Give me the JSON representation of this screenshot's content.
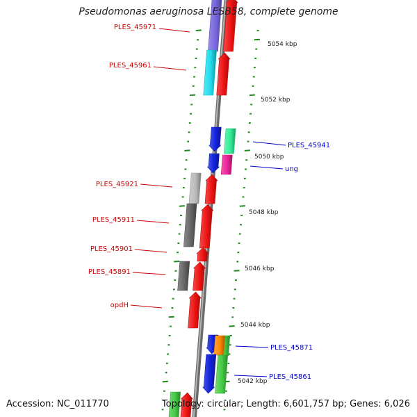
{
  "title": "Pseudomonas aeruginosa LESB58, complete genome",
  "accession_text": "Accession: NC_011770",
  "topology_text": "Topology: circular; Length: 6,601,757 bp; Genes: 6,026",
  "colors": {
    "backbone": "#8c8c8c",
    "tick": "#1b8a1b",
    "left_label": "#cc0000",
    "right_label": "#0000cc",
    "red": "#ee1111",
    "blue": "#1122dd",
    "purple": "#7766dd",
    "cyan": "#22ddee",
    "green": "#44cc44",
    "mint": "#33ee99",
    "magenta": "#ee2299",
    "orange": "#ff8800",
    "gray_light": "#bbbbbb",
    "gray_dark": "#666666"
  },
  "scale_labels": [
    "5054 kbp",
    "5052 kbp",
    "5050 kbp",
    "5048 kbp",
    "5046 kbp",
    "5044 kbp",
    "5042 kbp"
  ],
  "gene_labels_left": [
    "PLES_45971",
    "PLES_45961",
    "PLES_45921",
    "PLES_45911",
    "PLES_45901",
    "PLES_45891",
    "opdH"
  ],
  "gene_labels_right": [
    "PLES_45941",
    "ung",
    "PLES_45871",
    "PLES_45861"
  ]
}
